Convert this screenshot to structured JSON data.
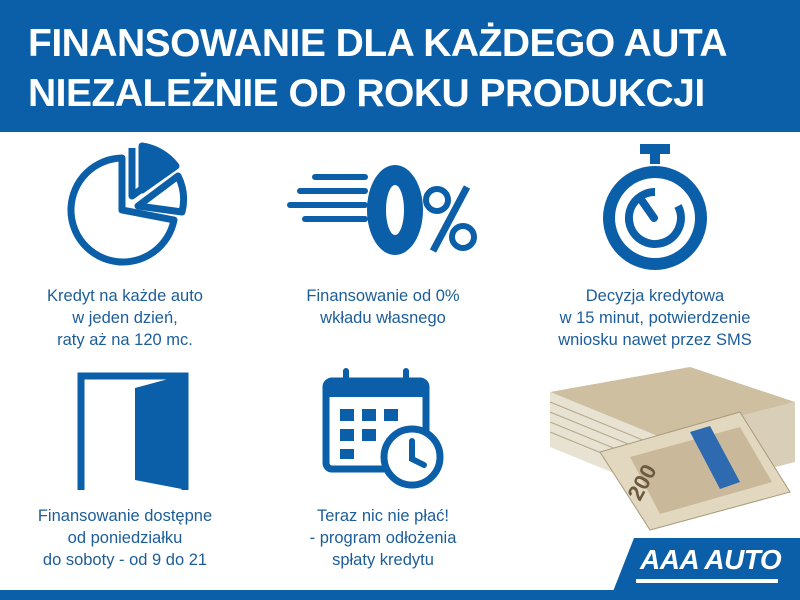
{
  "header": {
    "line1": "FINANSOWANIE DLA KAŻDEGO AUTA",
    "line2": "NIEZALEŻNIE OD ROKU PRODUKCJI"
  },
  "colors": {
    "brand_blue": "#0b5ea8",
    "text_blue": "#1c5d99"
  },
  "features": [
    {
      "icon": "pie-chart-icon",
      "lines": [
        "Kredyt na każde auto",
        "w jeden dzień,",
        "raty aż na 120 mc."
      ]
    },
    {
      "icon": "zero-percent-icon",
      "lines": [
        "Finansowanie od 0%",
        "wkładu własnego"
      ]
    },
    {
      "icon": "stopwatch-icon",
      "lines": [
        "Decyzja kredytowa",
        "w 15 minut, potwierdzenie",
        "wniosku nawet przez SMS"
      ]
    },
    {
      "icon": "open-door-icon",
      "lines": [
        "Finansowanie dostępne",
        "od poniedziałku",
        "do soboty - od 9 do 21"
      ]
    },
    {
      "icon": "calendar-clock-icon",
      "lines": [
        "Teraz nic nie płać!",
        "- program odłożenia",
        "spłaty kredytu"
      ]
    }
  ],
  "money_image": {
    "icon": "banknotes-stack-icon",
    "denomination": "200"
  },
  "logo": {
    "text": "AAA AUTO"
  }
}
